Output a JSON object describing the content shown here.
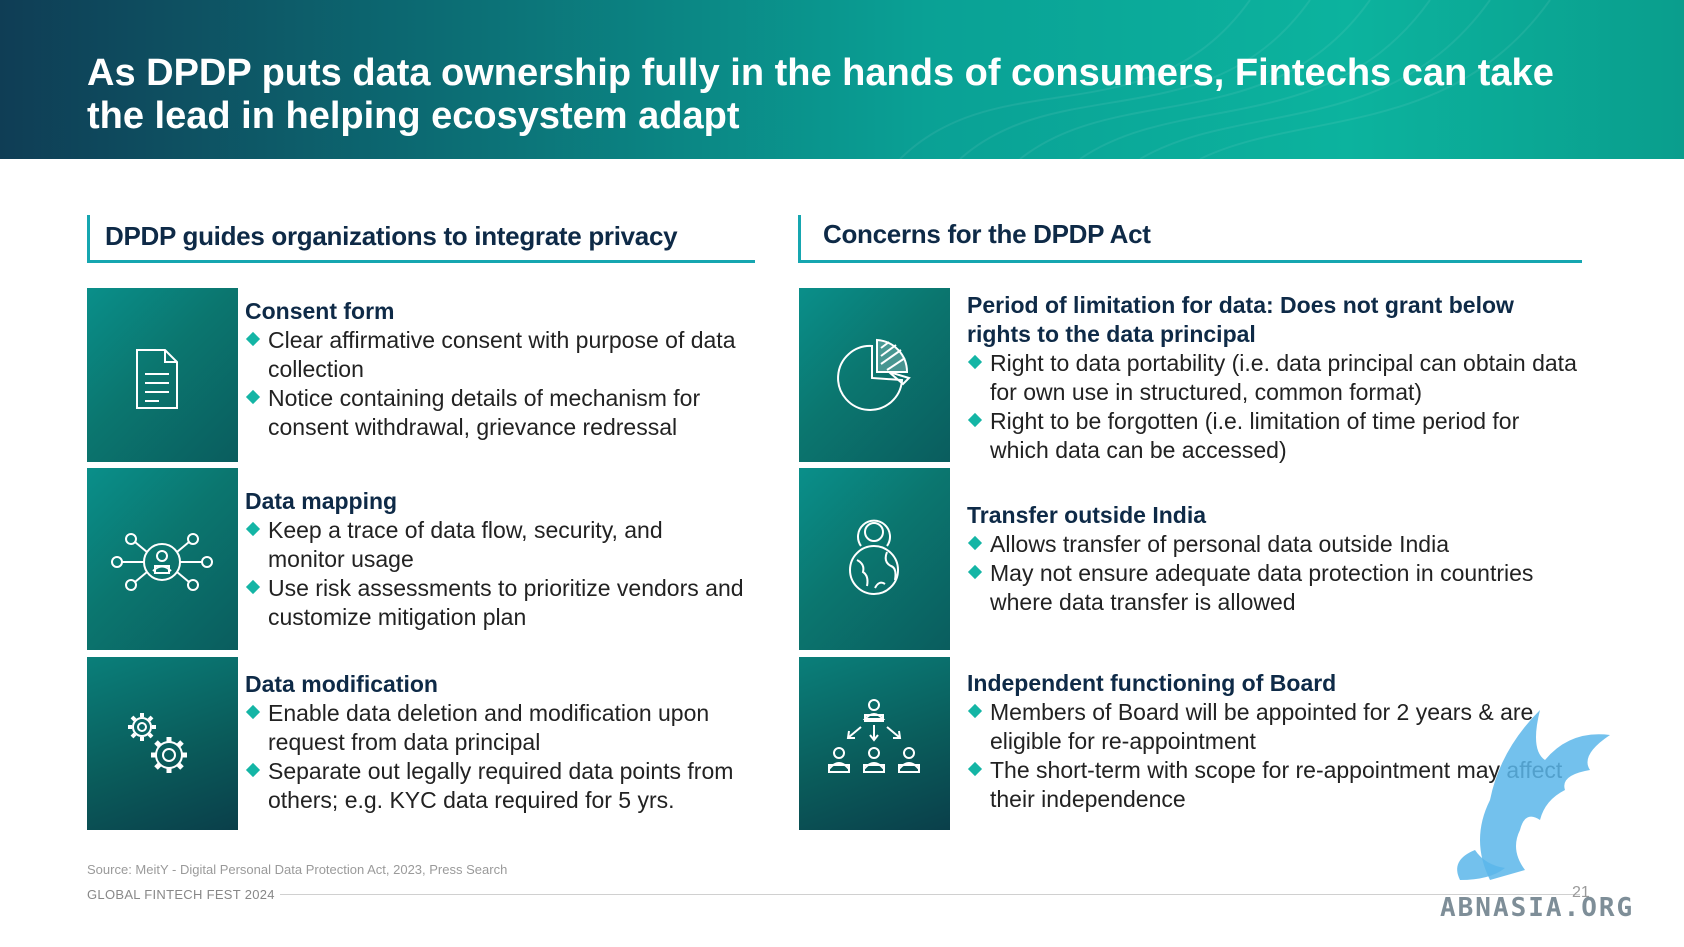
{
  "header": {
    "title": "As DPDP puts data ownership fully in the hands of consumers, Fintechs can take the lead in helping ecosystem adapt"
  },
  "left": {
    "heading": "DPDP guides organizations to integrate privacy",
    "items": [
      {
        "icon": "document-icon",
        "title": "Consent form",
        "bullets": [
          "Clear affirmative consent with purpose of data collection",
          "Notice containing details of mechanism for consent withdrawal, grievance redressal"
        ]
      },
      {
        "icon": "network-user-icon",
        "title": "Data mapping",
        "bullets": [
          "Keep a trace of data flow, security, and monitor usage",
          "Use risk assessments to prioritize vendors and customize mitigation plan"
        ]
      },
      {
        "icon": "gears-icon",
        "title": "Data modification",
        "bullets": [
          "Enable data deletion and modification upon request from data principal",
          "Separate out legally required data points from others; e.g. KYC data required for 5 yrs."
        ]
      }
    ]
  },
  "right": {
    "heading": "Concerns for the DPDP Act",
    "items": [
      {
        "icon": "pie-chart-icon",
        "title": "Period of limitation for data: Does not grant below rights to the data principal",
        "bullets": [
          "Right to data portability (i.e. data principal can obtain data for own use in structured, common format)",
          "Right to be forgotten (i.e. limitation of time period for which data can be accessed)"
        ]
      },
      {
        "icon": "globe-person-icon",
        "title": "Transfer outside India",
        "bullets": [
          "Allows transfer of personal data outside India",
          "May not ensure adequate data protection in countries where data transfer is allowed"
        ]
      },
      {
        "icon": "org-hierarchy-icon",
        "title": "Independent functioning of Board",
        "bullets": [
          "Members of Board will be appointed for 2 years & are eligible for re-appointment",
          "The short-term with scope for re-appointment may affect their independence"
        ]
      }
    ]
  },
  "footer": {
    "source": "Source: MeitY - Digital Personal Data Protection Act, 2023, Press Search",
    "event": "GLOBAL FINTECH FEST 2024",
    "page_number": "21",
    "watermark": "ABNASIA.ORG"
  },
  "colors": {
    "accent": "#16a6b0",
    "bullet": "#14b5a5",
    "heading": "#0e2a47"
  }
}
